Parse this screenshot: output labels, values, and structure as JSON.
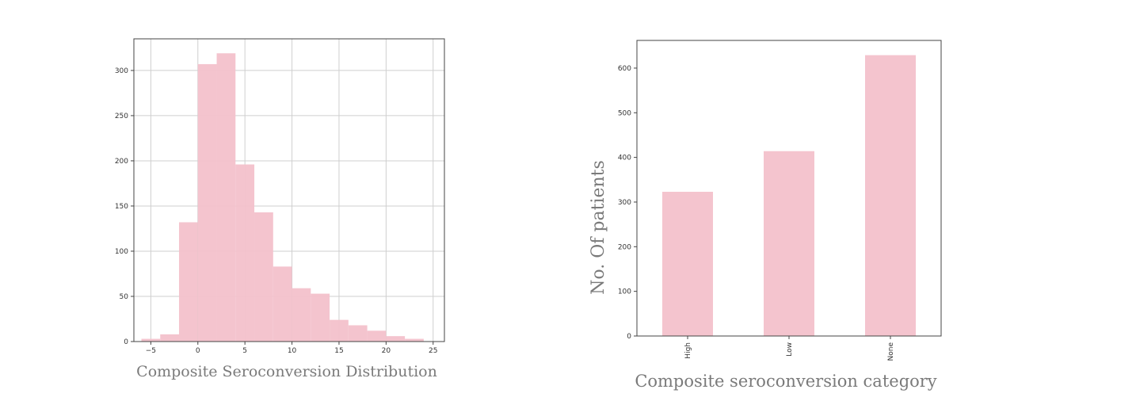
{
  "chart_data": [
    {
      "type": "bar",
      "subtype": "histogram",
      "xlabel": "Composite Seroconversion Distribution",
      "ylabel": "",
      "xlim": [
        -6.8,
        26.2
      ],
      "ylim": [
        0,
        335
      ],
      "grid": true,
      "xticks": [
        "−5",
        "0",
        "5",
        "10",
        "15",
        "20",
        "25"
      ],
      "xtick_values": [
        -5,
        0,
        5,
        10,
        15,
        20,
        25
      ],
      "yticks": [
        "0",
        "50",
        "100",
        "150",
        "200",
        "250",
        "300"
      ],
      "ytick_values": [
        0,
        50,
        100,
        150,
        200,
        250,
        300
      ],
      "bin_edges": [
        -6,
        -4,
        -2,
        0,
        2,
        4,
        6,
        8,
        10,
        12,
        14,
        16,
        18,
        20,
        22,
        24
      ],
      "values": [
        3,
        8,
        132,
        307,
        319,
        196,
        143,
        83,
        59,
        53,
        24,
        18,
        12,
        6,
        3
      ],
      "color": "#f3c1cb"
    },
    {
      "type": "bar",
      "xlabel": "Composite seroconversion category",
      "ylabel": "No. Of patients",
      "categories": [
        "High",
        "Low",
        "None"
      ],
      "values": [
        323,
        414,
        629
      ],
      "ylim": [
        0,
        662
      ],
      "grid": false,
      "yticks": [
        "0",
        "100",
        "200",
        "300",
        "400",
        "500",
        "600"
      ],
      "ytick_values": [
        0,
        100,
        200,
        300,
        400,
        500,
        600
      ],
      "color": "#f3c1cb"
    }
  ]
}
